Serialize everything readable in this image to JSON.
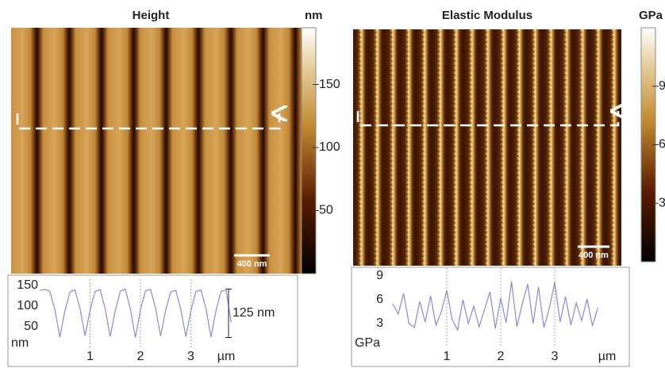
{
  "chart_data": [
    {
      "type": "line",
      "title": "Height",
      "colorbar_label": "nm",
      "colorbar_lim": [
        0,
        195
      ],
      "colorbar_ticks": [
        50,
        100,
        150
      ],
      "scale_bar": "400 nm",
      "color": "#8a8ad8",
      "x": [
        0.0,
        0.1,
        0.2,
        0.3,
        0.4,
        0.5,
        0.6,
        0.7,
        0.8,
        0.9,
        1.0,
        1.1,
        1.2,
        1.3,
        1.4,
        1.5,
        1.6,
        1.7,
        1.8,
        1.9,
        2.0,
        2.1,
        2.2,
        2.3,
        2.4,
        2.5,
        2.6,
        2.7,
        2.8,
        2.9,
        3.0,
        3.1,
        3.2,
        3.3,
        3.4,
        3.5,
        3.6,
        3.7,
        3.8
      ],
      "values": [
        138,
        140,
        136,
        92,
        25,
        88,
        134,
        139,
        94,
        28,
        90,
        135,
        140,
        93,
        26,
        89,
        136,
        141,
        92,
        24,
        91,
        137,
        140,
        95,
        27,
        90,
        134,
        138,
        92,
        26,
        88,
        135,
        139,
        94,
        25,
        90,
        136,
        138,
        60
      ],
      "xlim": [
        0,
        3.8
      ],
      "xticks": [
        1,
        2,
        3
      ],
      "x_unit": "µm",
      "ylim": [
        0,
        165
      ],
      "yticks": [
        50,
        100,
        150
      ],
      "y_unit": "nm",
      "annotation": "125 nm"
    },
    {
      "type": "line",
      "title": "Elastic Modulus",
      "colorbar_label": "GPa",
      "colorbar_lim": [
        0,
        12
      ],
      "colorbar_ticks": [
        3,
        6,
        9
      ],
      "scale_bar": "400 nm",
      "color": "#8a8ad8",
      "x": [
        0.0,
        0.1,
        0.2,
        0.3,
        0.4,
        0.5,
        0.6,
        0.7,
        0.8,
        0.9,
        1.0,
        1.1,
        1.2,
        1.3,
        1.4,
        1.5,
        1.6,
        1.7,
        1.8,
        1.9,
        2.0,
        2.1,
        2.2,
        2.3,
        2.4,
        2.5,
        2.6,
        2.7,
        2.8,
        2.9,
        3.0,
        3.1,
        3.2,
        3.3,
        3.4,
        3.5,
        3.6,
        3.7,
        3.8
      ],
      "values": [
        5.5,
        4.2,
        6.8,
        3.0,
        2.5,
        5.8,
        3.2,
        6.5,
        2.8,
        4.5,
        7.2,
        3.5,
        2.2,
        6.0,
        3.0,
        5.2,
        2.6,
        4.8,
        7.0,
        2.4,
        6.2,
        3.1,
        8.3,
        2.6,
        5.5,
        8.0,
        3.0,
        7.6,
        2.5,
        4.9,
        8.2,
        3.2,
        6.4,
        2.8,
        5.6,
        3.4,
        6.1,
        2.7,
        5.0
      ],
      "xlim": [
        0,
        3.8
      ],
      "xticks": [
        1,
        2,
        3
      ],
      "x_unit": "µm",
      "ylim": [
        0,
        10
      ],
      "yticks": [
        3,
        6,
        9
      ],
      "y_unit": "GPa"
    }
  ]
}
